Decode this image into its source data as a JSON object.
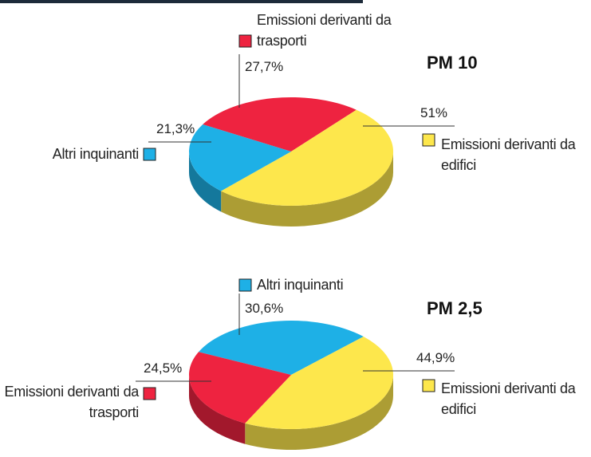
{
  "chart_data": [
    {
      "type": "pie",
      "title": "PM 10",
      "categories": [
        "Emissioni derivanti da trasporti",
        "Emissioni derivanti da edifici",
        "Altri inquinanti"
      ],
      "values": [
        27.7,
        51,
        21.3
      ],
      "value_labels": [
        "27,7%",
        "51%",
        "21,3%"
      ],
      "colors": [
        "#ee2340",
        "#fde74c",
        "#1eb0e6"
      ]
    },
    {
      "type": "pie",
      "title": "PM 2,5",
      "categories": [
        "Altri inquinanti",
        "Emissioni derivanti da edifici",
        "Emissioni derivanti da trasporti"
      ],
      "values": [
        30.6,
        44.9,
        24.5
      ],
      "value_labels": [
        "30,6%",
        "44,9%",
        "24,5%"
      ],
      "colors": [
        "#1eb0e6",
        "#fde74c",
        "#ee2340"
      ]
    }
  ]
}
